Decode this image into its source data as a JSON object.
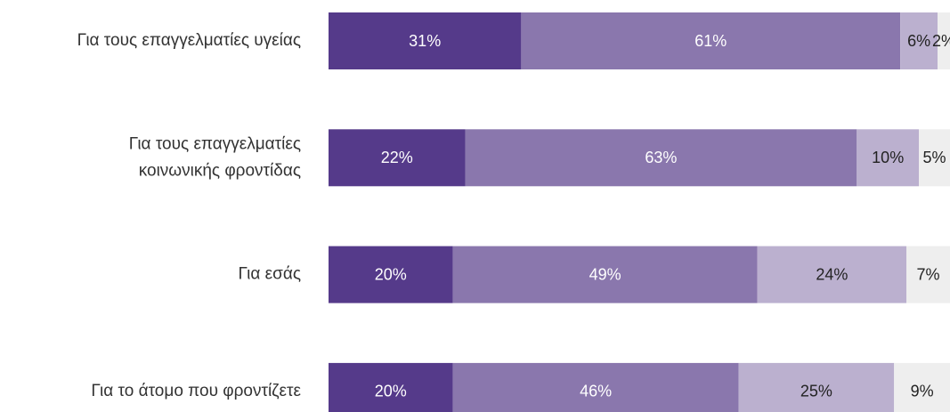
{
  "chart_data": {
    "type": "stacked-barh",
    "categories": [
      "Για τους επαγγελματίες υγείας",
      "Για τους επαγγελματίες\nκοινωνικής φροντίδας",
      "Για εσάς",
      "Για το άτομο που φροντίζετε"
    ],
    "xlim": [
      0,
      100
    ],
    "series": [
      {
        "color": "#553a8a",
        "text_color": "#ffffff",
        "values": [
          31,
          22,
          20,
          20
        ],
        "value_labels": [
          "31%",
          "22%",
          "20%",
          "20%"
        ]
      },
      {
        "color": "#8a77ad",
        "text_color": "#ffffff",
        "values": [
          61,
          63,
          49,
          46
        ],
        "value_labels": [
          "61%",
          "63%",
          "49%",
          "46%"
        ]
      },
      {
        "color": "#bbb0cf",
        "text_color": "#222222",
        "values": [
          6,
          10,
          24,
          25
        ],
        "value_labels": [
          "6%",
          "10%",
          "24%",
          "25%"
        ]
      },
      {
        "color": "#eeeeee",
        "text_color": "#222222",
        "values": [
          2,
          5,
          7,
          9
        ],
        "value_labels": [
          "2%",
          "5%",
          "7%",
          "9%"
        ]
      }
    ]
  }
}
